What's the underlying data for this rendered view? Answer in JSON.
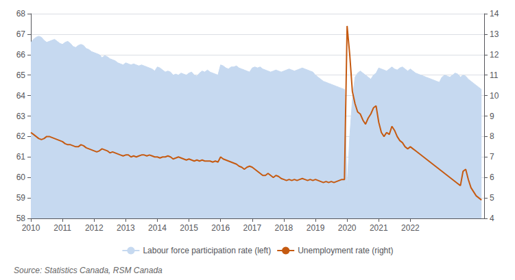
{
  "chart_data": {
    "type": "line",
    "annotations": [
      "Source: Statistics Canada, RSM Canada"
    ],
    "x": [
      2010,
      2010.083333,
      2010.166667,
      2010.25,
      2010.333333,
      2010.416667,
      2010.5,
      2010.583333,
      2010.666667,
      2010.75,
      2010.833333,
      2010.916667,
      2011,
      2011.083333,
      2011.166667,
      2011.25,
      2011.333333,
      2011.416667,
      2011.5,
      2011.583333,
      2011.666667,
      2011.75,
      2011.833333,
      2011.916667,
      2012,
      2012.083333,
      2012.166667,
      2012.25,
      2012.333333,
      2012.416667,
      2012.5,
      2012.583333,
      2012.666667,
      2012.75,
      2012.833333,
      2012.916667,
      2013,
      2013.083333,
      2013.166667,
      2013.25,
      2013.333333,
      2013.416667,
      2013.5,
      2013.583333,
      2013.666667,
      2013.75,
      2013.833333,
      2013.916667,
      2014,
      2014.083333,
      2014.166667,
      2014.25,
      2014.333333,
      2014.416667,
      2014.5,
      2014.583333,
      2014.666667,
      2014.75,
      2014.833333,
      2014.916667,
      2015,
      2015.083333,
      2015.166667,
      2015.25,
      2015.333333,
      2015.416667,
      2015.5,
      2015.583333,
      2015.666667,
      2015.75,
      2015.833333,
      2015.916667,
      2016,
      2016.083333,
      2016.166667,
      2016.25,
      2016.333333,
      2016.416667,
      2016.5,
      2016.583333,
      2016.666667,
      2016.75,
      2016.833333,
      2016.916667,
      2017,
      2017.083333,
      2017.166667,
      2017.25,
      2017.333333,
      2017.416667,
      2017.5,
      2017.583333,
      2017.666667,
      2017.75,
      2017.833333,
      2017.916667,
      2018,
      2018.083333,
      2018.166667,
      2018.25,
      2018.333333,
      2018.416667,
      2018.5,
      2018.583333,
      2018.666667,
      2018.75,
      2018.833333,
      2018.916667,
      2019,
      2019.083333,
      2019.166667,
      2019.25,
      2019.333333,
      2019.416667,
      2019.5,
      2019.583333,
      2019.666667,
      2019.75,
      2019.833333,
      2019.916667,
      2020,
      2020.083333,
      2020.166667,
      2020.25,
      2020.333333,
      2020.416667,
      2020.5,
      2020.583333,
      2020.666667,
      2020.75,
      2020.833333,
      2020.916667,
      2021,
      2021.083333,
      2021.166667,
      2021.25,
      2021.333333,
      2021.416667,
      2021.5,
      2021.583333,
      2021.666667,
      2021.75,
      2021.833333,
      2021.916667,
      2022,
      2022.083333,
      2022.166667,
      2022.25,
      2022.333333,
      2022.416667,
      2022.5,
      2022.583333,
      2022.666667,
      2022.75,
      2022.833333,
      2022.916667,
      2023,
      2023.083333,
      2023.166667,
      2023.25,
      2023.333333,
      2023.416667,
      2023.5,
      2023.583333,
      2023.666667,
      2023.75,
      2023.833333,
      2023.916667,
      2024,
      2024.083333,
      2024.166667,
      2024.25
    ],
    "xlim": [
      2010,
      2024.333333
    ],
    "xticks": [
      2010,
      2011,
      2012,
      2013,
      2014,
      2015,
      2016,
      2017,
      2018,
      2019,
      2020,
      2021,
      2022
    ],
    "ylim": [
      58,
      68
    ],
    "yticks": [
      58,
      59,
      60,
      61,
      62,
      63,
      64,
      65,
      66,
      67,
      68
    ],
    "y2lim": [
      4,
      14
    ],
    "y2ticks": [
      4,
      5,
      6,
      7,
      8,
      9,
      10,
      11,
      12,
      13,
      14
    ],
    "grid": true,
    "legend": "bottom",
    "series": [
      {
        "name": "Labour force participation rate (left)",
        "type": "area",
        "color": "#c6d9f0",
        "axis": "y",
        "values": [
          66.6,
          66.75,
          66.85,
          66.9,
          66.85,
          66.7,
          66.6,
          66.65,
          66.7,
          66.75,
          66.65,
          66.55,
          66.5,
          66.6,
          66.65,
          66.55,
          66.4,
          66.35,
          66.45,
          66.5,
          66.45,
          66.3,
          66.25,
          66.15,
          66.1,
          66.05,
          66.0,
          65.85,
          65.95,
          65.9,
          65.8,
          65.75,
          65.7,
          65.6,
          65.55,
          65.5,
          65.6,
          65.55,
          65.5,
          65.55,
          65.5,
          65.45,
          65.5,
          65.45,
          65.4,
          65.35,
          65.3,
          65.2,
          65.4,
          65.35,
          65.25,
          65.15,
          65.2,
          65.15,
          65.0,
          65.05,
          65.0,
          65.1,
          65.05,
          65.0,
          65.1,
          65.15,
          65.0,
          64.95,
          65.1,
          65.2,
          65.15,
          65.25,
          65.15,
          65.1,
          65.05,
          65.0,
          65.5,
          65.45,
          65.35,
          65.3,
          65.4,
          65.4,
          65.45,
          65.35,
          65.3,
          65.25,
          65.2,
          65.15,
          65.35,
          65.4,
          65.35,
          65.4,
          65.3,
          65.25,
          65.2,
          65.15,
          65.2,
          65.25,
          65.2,
          65.15,
          65.2,
          65.25,
          65.3,
          65.25,
          65.2,
          65.25,
          65.3,
          65.35,
          65.3,
          65.25,
          65.2,
          65.15,
          65.0,
          64.9,
          64.8,
          64.7,
          64.65,
          64.6,
          64.55,
          64.5,
          64.45,
          64.4,
          64.35,
          64.3,
          59.5,
          62.0,
          63.8,
          64.9,
          65.1,
          65.2,
          65.1,
          65.0,
          64.9,
          64.8,
          65.0,
          65.1,
          65.35,
          65.3,
          65.25,
          65.2,
          65.3,
          65.4,
          65.3,
          65.25,
          65.35,
          65.4,
          65.3,
          65.2,
          65.3,
          65.2,
          65.1,
          65.05,
          65.0,
          64.95,
          64.9,
          64.85,
          64.8,
          64.75,
          64.7,
          64.65,
          64.9,
          65.0,
          64.95,
          64.9,
          65.0,
          65.1,
          65.05,
          64.9,
          65.0,
          64.95,
          64.8,
          64.7,
          64.6,
          64.5,
          64.4,
          64.3
        ]
      },
      {
        "name": "Unemployment rate (right)",
        "type": "line",
        "color": "#c55a11",
        "axis": "y2",
        "values": [
          8.2,
          8.1,
          8.0,
          7.9,
          7.85,
          7.9,
          8.0,
          8.0,
          7.95,
          7.9,
          7.85,
          7.8,
          7.75,
          7.65,
          7.6,
          7.6,
          7.55,
          7.5,
          7.5,
          7.6,
          7.55,
          7.45,
          7.4,
          7.35,
          7.3,
          7.25,
          7.3,
          7.4,
          7.35,
          7.3,
          7.2,
          7.25,
          7.2,
          7.15,
          7.1,
          7.05,
          7.1,
          7.1,
          7.0,
          7.05,
          7.0,
          7.05,
          7.1,
          7.1,
          7.05,
          7.1,
          7.05,
          7.0,
          7.0,
          6.95,
          7.0,
          7.0,
          7.05,
          7.0,
          6.9,
          6.95,
          7.0,
          6.95,
          6.9,
          6.85,
          6.9,
          6.85,
          6.8,
          6.85,
          6.8,
          6.85,
          6.8,
          6.8,
          6.8,
          6.75,
          6.8,
          6.75,
          7.0,
          6.9,
          6.85,
          6.8,
          6.75,
          6.7,
          6.65,
          6.55,
          6.5,
          6.4,
          6.5,
          6.55,
          6.5,
          6.4,
          6.3,
          6.2,
          6.1,
          6.1,
          6.2,
          6.1,
          6.0,
          6.1,
          6.05,
          5.95,
          5.9,
          5.85,
          5.9,
          5.85,
          5.9,
          5.85,
          5.9,
          5.95,
          5.9,
          5.85,
          5.9,
          5.85,
          5.9,
          5.85,
          5.8,
          5.75,
          5.8,
          5.75,
          5.8,
          5.75,
          5.8,
          5.85,
          5.9,
          5.9,
          13.4,
          12.0,
          10.2,
          9.6,
          9.2,
          9.1,
          8.8,
          8.6,
          8.9,
          9.1,
          9.4,
          9.5,
          8.7,
          8.2,
          8.0,
          8.2,
          8.1,
          8.5,
          8.3,
          8.0,
          7.8,
          7.7,
          7.5,
          7.4,
          7.5,
          7.4,
          7.3,
          7.2,
          7.1,
          7.0,
          6.9,
          6.8,
          6.7,
          6.6,
          6.5,
          6.4,
          6.3,
          6.2,
          6.1,
          6.0,
          5.9,
          5.8,
          5.7,
          5.6,
          6.3,
          6.4,
          5.9,
          5.5,
          5.3,
          5.1,
          5.0,
          4.9
        ]
      }
    ]
  }
}
